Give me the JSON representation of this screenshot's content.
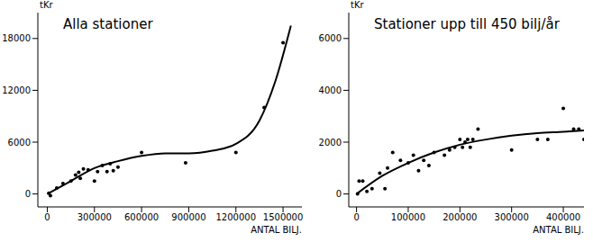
{
  "chart_data": [
    {
      "type": "scatter",
      "title": "Alla stationer",
      "y_label": "tKr",
      "x_label": "ANTAL BILJ.",
      "x": [
        10000,
        20000,
        60000,
        100000,
        150000,
        180000,
        200000,
        210000,
        230000,
        260000,
        300000,
        320000,
        350000,
        380000,
        400000,
        420000,
        450000,
        600000,
        880000,
        1200000,
        1380000,
        1500000
      ],
      "values": [
        100,
        -200,
        700,
        1200,
        1500,
        2200,
        2500,
        1800,
        2900,
        2800,
        1500,
        2600,
        3300,
        2600,
        3500,
        2700,
        3100,
        4800,
        3600,
        4800,
        10000,
        17500
      ],
      "color": "#000000",
      "marker": "dot",
      "fit": {
        "type": "line",
        "x": [
          0,
          150000,
          300000,
          450000,
          600000,
          750000,
          900000,
          1050000,
          1200000,
          1350000,
          1450000,
          1550000
        ],
        "values": [
          0,
          1500,
          3000,
          3800,
          4400,
          4700,
          4700,
          5000,
          5800,
          8500,
          13000,
          19500
        ],
        "color": "#000000",
        "line_style": "solid"
      },
      "xlim": [
        -60000,
        1620000
      ],
      "ylim": [
        -1500,
        21000
      ],
      "xticks": [
        0,
        300000,
        600000,
        900000,
        1200000,
        1500000
      ],
      "yticks": [
        0,
        6000,
        12000,
        18000
      ],
      "grid": false
    },
    {
      "type": "scatter",
      "title": "Stationer upp till 450 bilj/år",
      "y_label": "tKr",
      "x_label": "ANTAL BILJ.",
      "x": [
        2000,
        5000,
        12000,
        20000,
        30000,
        45000,
        55000,
        60000,
        70000,
        85000,
        100000,
        110000,
        120000,
        130000,
        140000,
        150000,
        170000,
        180000,
        190000,
        200000,
        205000,
        210000,
        215000,
        220000,
        225000,
        235000,
        300000,
        350000,
        370000,
        400000,
        420000,
        430000,
        440000
      ],
      "values": [
        0,
        500,
        500,
        100,
        200,
        800,
        200,
        1000,
        1600,
        1300,
        1200,
        1500,
        900,
        1300,
        1100,
        1600,
        1500,
        1700,
        1800,
        2100,
        1800,
        2000,
        2100,
        1800,
        2100,
        2500,
        1700,
        2100,
        2100,
        3300,
        2500,
        2500,
        2100
      ],
      "color": "#000000",
      "marker": "dot",
      "fit": {
        "type": "line",
        "x": [
          0,
          50000,
          100000,
          150000,
          200000,
          250000,
          300000,
          350000,
          400000,
          440000
        ],
        "values": [
          0,
          700,
          1200,
          1600,
          1900,
          2100,
          2250,
          2350,
          2400,
          2450
        ],
        "color": "#000000",
        "line_style": "solid"
      },
      "xlim": [
        -15000,
        440000
      ],
      "ylim": [
        -500,
        7000
      ],
      "xticks": [
        0,
        100000,
        200000,
        300000,
        400000
      ],
      "yticks": [
        0,
        2000,
        4000,
        6000
      ],
      "grid": false
    }
  ]
}
